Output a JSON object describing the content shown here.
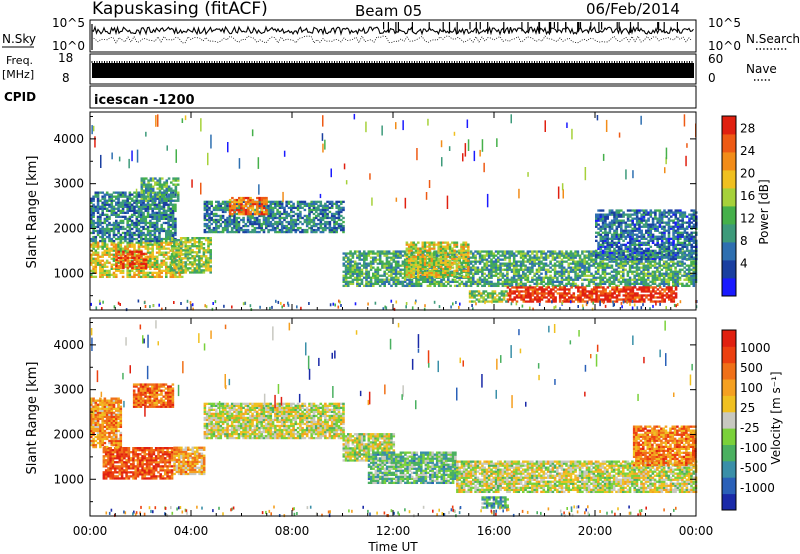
{
  "header": {
    "station": "Kapuskasing (fitACF)",
    "beam": "Beam 05",
    "date": "06/Feb/2014"
  },
  "strips": {
    "nsky_label": "N.Sky",
    "nsky_ticks": [
      "10^5",
      "10^0"
    ],
    "nsearch_label": "N.Search",
    "nsearch_ticks": [
      "10^5",
      "10^0"
    ],
    "freq_label": "Freq.",
    "freq_unit": "[MHz]",
    "freq_ticks": [
      "18",
      "8"
    ],
    "nave_label": "Nave",
    "nave_ticks": [
      "60",
      "0"
    ],
    "cpid_label": "CPID",
    "cpid_value": "icescan -1200"
  },
  "chart_data": [
    {
      "type": "heatmap",
      "name": "power-panel",
      "ylabel": "Slant Range [km]",
      "yticks": [
        1000,
        2000,
        3000,
        4000
      ],
      "ylim": [
        180,
        4600
      ],
      "xlim": [
        0,
        24
      ],
      "colorbar": {
        "label": "Power [dB]",
        "ticks": [
          "4",
          "8",
          "12",
          "16",
          "20",
          "24",
          "28"
        ],
        "colors": [
          "#1a1aff",
          "#1a3fa0",
          "#2e6fb0",
          "#3d9a7a",
          "#45b04a",
          "#a6d13a",
          "#f0c020",
          "#f28c18",
          "#ee5a14",
          "#e02010"
        ]
      },
      "regions": [
        {
          "t0": 0.0,
          "t1": 3.6,
          "r0": 900,
          "r1": 1700,
          "level": 0.6
        },
        {
          "t0": 0.0,
          "t1": 3.4,
          "r0": 1700,
          "r1": 2800,
          "level": 0.3
        },
        {
          "t0": 1.0,
          "t1": 2.2,
          "r0": 1100,
          "r1": 1500,
          "level": 0.9
        },
        {
          "t0": 2.0,
          "t1": 3.5,
          "r0": 2600,
          "r1": 3100,
          "level": 0.4
        },
        {
          "t0": 3.2,
          "t1": 4.8,
          "r0": 1000,
          "r1": 1800,
          "level": 0.5
        },
        {
          "t0": 4.5,
          "t1": 10.0,
          "r0": 1900,
          "r1": 2600,
          "level": 0.3
        },
        {
          "t0": 5.5,
          "t1": 7.0,
          "r0": 2300,
          "r1": 2700,
          "level": 0.8
        },
        {
          "t0": 10.0,
          "t1": 24.0,
          "r0": 700,
          "r1": 1500,
          "level": 0.4
        },
        {
          "t0": 12.5,
          "t1": 15.0,
          "r0": 900,
          "r1": 1700,
          "level": 0.6
        },
        {
          "t0": 16.5,
          "t1": 23.2,
          "r0": 350,
          "r1": 700,
          "level": 0.95
        },
        {
          "t0": 15.0,
          "t1": 16.5,
          "r0": 350,
          "r1": 600,
          "level": 0.5
        },
        {
          "t0": 20.0,
          "t1": 24.0,
          "r0": 1300,
          "r1": 2400,
          "level": 0.25
        }
      ]
    },
    {
      "type": "heatmap",
      "name": "velocity-panel",
      "ylabel": "Slant Range [km]",
      "yticks": [
        1000,
        2000,
        3000,
        4000
      ],
      "ylim": [
        180,
        4600
      ],
      "xlim": [
        0,
        24
      ],
      "xticks": [
        "00:00",
        "04:00",
        "08:00",
        "12:00",
        "16:00",
        "20:00",
        "00:00"
      ],
      "xlabel": "Time UT",
      "colorbar": {
        "label": "Velocity [m s⁻¹]",
        "ticks": [
          "1000",
          "500",
          "100",
          "25",
          "-25",
          "-100",
          "-500",
          "-1000"
        ],
        "colors": [
          "#1a2aa8",
          "#2a60b8",
          "#3a8fa8",
          "#4ab060",
          "#7ad13a",
          "#c8c8c0",
          "#f0c020",
          "#f5a020",
          "#f07018",
          "#ec4010",
          "#e02010"
        ]
      },
      "regions": [
        {
          "t0": 0.5,
          "t1": 3.2,
          "r0": 1000,
          "r1": 1700,
          "level": 0.85
        },
        {
          "t0": 0.0,
          "t1": 1.2,
          "r0": 1700,
          "r1": 2800,
          "level": 0.7
        },
        {
          "t0": 1.7,
          "t1": 3.3,
          "r0": 2600,
          "r1": 3100,
          "level": 0.8
        },
        {
          "t0": 3.3,
          "t1": 4.5,
          "r0": 1100,
          "r1": 1700,
          "level": 0.65
        },
        {
          "t0": 4.5,
          "t1": 10.0,
          "r0": 1900,
          "r1": 2700,
          "level": 0.5
        },
        {
          "t0": 10.0,
          "t1": 12.0,
          "r0": 1400,
          "r1": 2000,
          "level": 0.5
        },
        {
          "t0": 11.0,
          "t1": 14.5,
          "r0": 900,
          "r1": 1600,
          "level": 0.35
        },
        {
          "t0": 14.5,
          "t1": 24.0,
          "r0": 700,
          "r1": 1400,
          "level": 0.5
        },
        {
          "t0": 15.5,
          "t1": 16.5,
          "r0": 350,
          "r1": 600,
          "level": 0.3
        },
        {
          "t0": 21.5,
          "t1": 24.0,
          "r0": 1300,
          "r1": 2200,
          "level": 0.75
        }
      ]
    }
  ]
}
